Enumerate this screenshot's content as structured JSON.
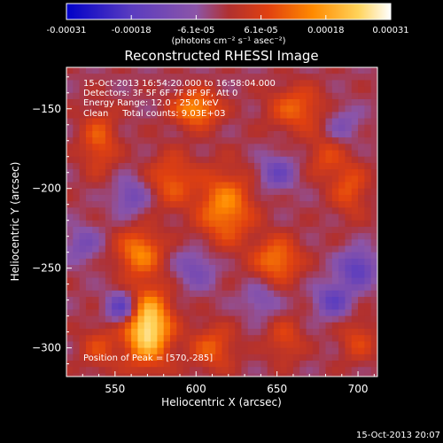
{
  "chart_data": {
    "type": "heatmap",
    "title": "Reconstructed RHESSI Image",
    "xlabel": "Heliocentric X (arcsec)",
    "ylabel": "Heliocentric Y (arcsec)",
    "xlim": [
      520,
      712
    ],
    "ylim": [
      -318,
      -124
    ],
    "xticks": [
      550,
      600,
      650,
      700
    ],
    "yticks": [
      -150,
      -200,
      -250,
      -300
    ],
    "colorbar": {
      "ticks": [
        "-0.00031",
        "-0.00018",
        "-6.1e-05",
        "6.1e-05",
        "0.00018",
        "0.00031"
      ],
      "unit_label": "(photons cm⁻² s⁻¹ asec⁻²)",
      "range": [
        -0.00031,
        0.00031
      ]
    },
    "annotations": [
      "15-Oct-2013 16:54:20.000 to 16:58:04.000",
      "Detectors: 3F 5F 6F 7F 8F 9F, Att 0",
      "Energy Range: 12.0 - 25.0 keV",
      "Clean     Total counts: 9.03E+03"
    ],
    "peak_label": "Position of Peak = [570,-285]",
    "peak": [
      570,
      -285
    ],
    "footer_date": "15-Oct-2013 20:07",
    "sources": [
      {
        "x": 570,
        "y": -287,
        "amp": 0.00031,
        "sx": 10,
        "sy": 16
      },
      {
        "x": 600,
        "y": -150,
        "amp": 0.00019,
        "sx": 10,
        "sy": 8
      },
      {
        "x": 618,
        "y": -212,
        "amp": 0.00018,
        "sx": 12,
        "sy": 16
      },
      {
        "x": 565,
        "y": -240,
        "amp": 0.00017,
        "sx": 10,
        "sy": 10
      },
      {
        "x": 650,
        "y": -245,
        "amp": 0.00016,
        "sx": 10,
        "sy": 10
      },
      {
        "x": 662,
        "y": -150,
        "amp": 0.00013,
        "sx": 12,
        "sy": 10
      },
      {
        "x": 540,
        "y": -170,
        "amp": 0.00012,
        "sx": 8,
        "sy": 14
      },
      {
        "x": 585,
        "y": -195,
        "amp": 0.00012,
        "sx": 10,
        "sy": 12
      },
      {
        "x": 695,
        "y": -200,
        "amp": 0.00011,
        "sx": 8,
        "sy": 12
      },
      {
        "x": 610,
        "y": -300,
        "amp": 0.00012,
        "sx": 10,
        "sy": 10
      },
      {
        "x": 540,
        "y": -300,
        "amp": 9e-05,
        "sx": 8,
        "sy": 10
      },
      {
        "x": 655,
        "y": -295,
        "amp": 9e-05,
        "sx": 8,
        "sy": 10
      },
      {
        "x": 700,
        "y": -295,
        "amp": 9e-05,
        "sx": 8,
        "sy": 10
      },
      {
        "x": 680,
        "y": -180,
        "amp": 9e-05,
        "sx": 8,
        "sy": 10
      },
      {
        "x": 555,
        "y": -275,
        "amp": -0.0002,
        "sx": 7,
        "sy": 7
      },
      {
        "x": 700,
        "y": -250,
        "amp": -0.00016,
        "sx": 8,
        "sy": 8
      },
      {
        "x": 685,
        "y": -270,
        "amp": -0.00014,
        "sx": 8,
        "sy": 8
      },
      {
        "x": 650,
        "y": -190,
        "amp": -0.00012,
        "sx": 8,
        "sy": 8
      },
      {
        "x": 560,
        "y": -205,
        "amp": -0.00011,
        "sx": 8,
        "sy": 8
      },
      {
        "x": 530,
        "y": -235,
        "amp": -9e-05,
        "sx": 8,
        "sy": 8
      },
      {
        "x": 690,
        "y": -160,
        "amp": -8e-05,
        "sx": 8,
        "sy": 8
      },
      {
        "x": 600,
        "y": -250,
        "amp": -0.0001,
        "sx": 9,
        "sy": 9
      },
      {
        "x": 640,
        "y": -270,
        "amp": -8e-05,
        "sx": 8,
        "sy": 8
      }
    ],
    "grid": false,
    "colormap": [
      "#0000c8",
      "#5a3cc0",
      "#8c55a8",
      "#b03030",
      "#e04010",
      "#ff8a00",
      "#ffd35a",
      "#ffffff"
    ]
  }
}
